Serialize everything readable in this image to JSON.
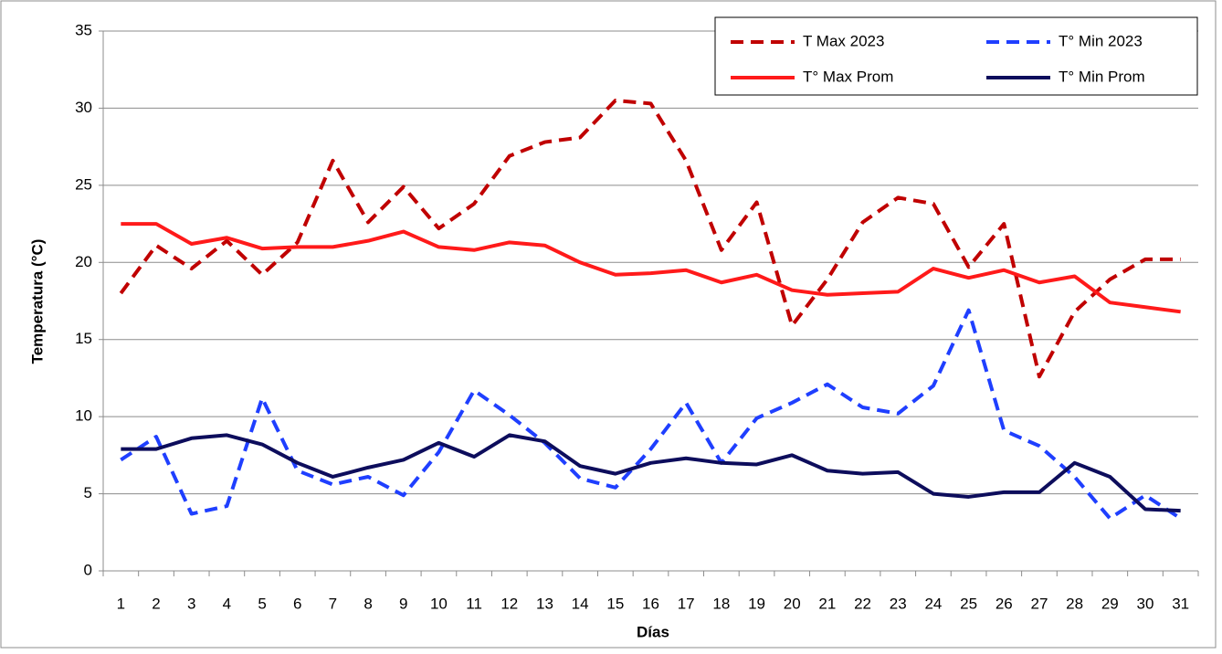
{
  "chart_data": {
    "type": "line",
    "x_label": "Días",
    "y_label": "Temperatura (°C)",
    "categories": [
      "1",
      "2",
      "3",
      "4",
      "5",
      "6",
      "7",
      "8",
      "9",
      "10",
      "11",
      "12",
      "13",
      "14",
      "15",
      "16",
      "17",
      "18",
      "19",
      "20",
      "21",
      "22",
      "23",
      "24",
      "25",
      "26",
      "27",
      "28",
      "29",
      "30",
      "31"
    ],
    "series": [
      {
        "name": "T Max 2023",
        "color": "#c00000",
        "dashed": true,
        "values": [
          18.0,
          21.1,
          19.6,
          21.4,
          19.2,
          21.3,
          26.6,
          22.6,
          24.9,
          22.2,
          23.8,
          26.9,
          27.8,
          28.1,
          30.5,
          30.3,
          26.6,
          20.8,
          23.9,
          15.9,
          18.9,
          22.6,
          24.2,
          23.8,
          19.7,
          22.5,
          12.6,
          16.8,
          18.9,
          20.2,
          20.2
        ]
      },
      {
        "name": "T° Min 2023",
        "color": "#1f3fff",
        "dashed": true,
        "values": [
          7.2,
          8.7,
          3.7,
          4.2,
          11.2,
          6.5,
          5.6,
          6.1,
          4.9,
          7.7,
          11.7,
          10.1,
          8.3,
          6.0,
          5.4,
          7.9,
          10.9,
          7.0,
          9.9,
          10.9,
          12.1,
          10.6,
          10.2,
          12.0,
          16.9,
          9.1,
          8.1,
          6.1,
          3.4,
          4.9,
          3.4
        ]
      },
      {
        "name": "T° Max Prom",
        "color": "#ff1a1a",
        "dashed": false,
        "values": [
          22.5,
          22.5,
          21.2,
          21.6,
          20.9,
          21.0,
          21.0,
          21.4,
          22.0,
          21.0,
          20.8,
          21.3,
          21.1,
          20.0,
          19.2,
          19.3,
          19.5,
          18.7,
          19.2,
          18.2,
          17.9,
          18.0,
          18.1,
          19.6,
          19.0,
          19.5,
          18.7,
          19.1,
          17.4,
          17.1,
          16.8
        ]
      },
      {
        "name": "T° Min Prom",
        "color": "#0d0d5c",
        "dashed": false,
        "values": [
          7.9,
          7.9,
          8.6,
          8.8,
          8.2,
          7.0,
          6.1,
          6.7,
          7.2,
          8.3,
          7.4,
          8.8,
          8.4,
          6.8,
          6.3,
          7.0,
          7.3,
          7.0,
          6.9,
          7.5,
          6.5,
          6.3,
          6.4,
          5.0,
          4.8,
          5.1,
          5.1,
          7.0,
          6.1,
          4.0,
          3.9
        ]
      }
    ],
    "ylim": [
      0,
      35
    ],
    "yticks": [
      0,
      5,
      10,
      15,
      20,
      25,
      30,
      35
    ],
    "grid": true,
    "legend": "top-right"
  }
}
